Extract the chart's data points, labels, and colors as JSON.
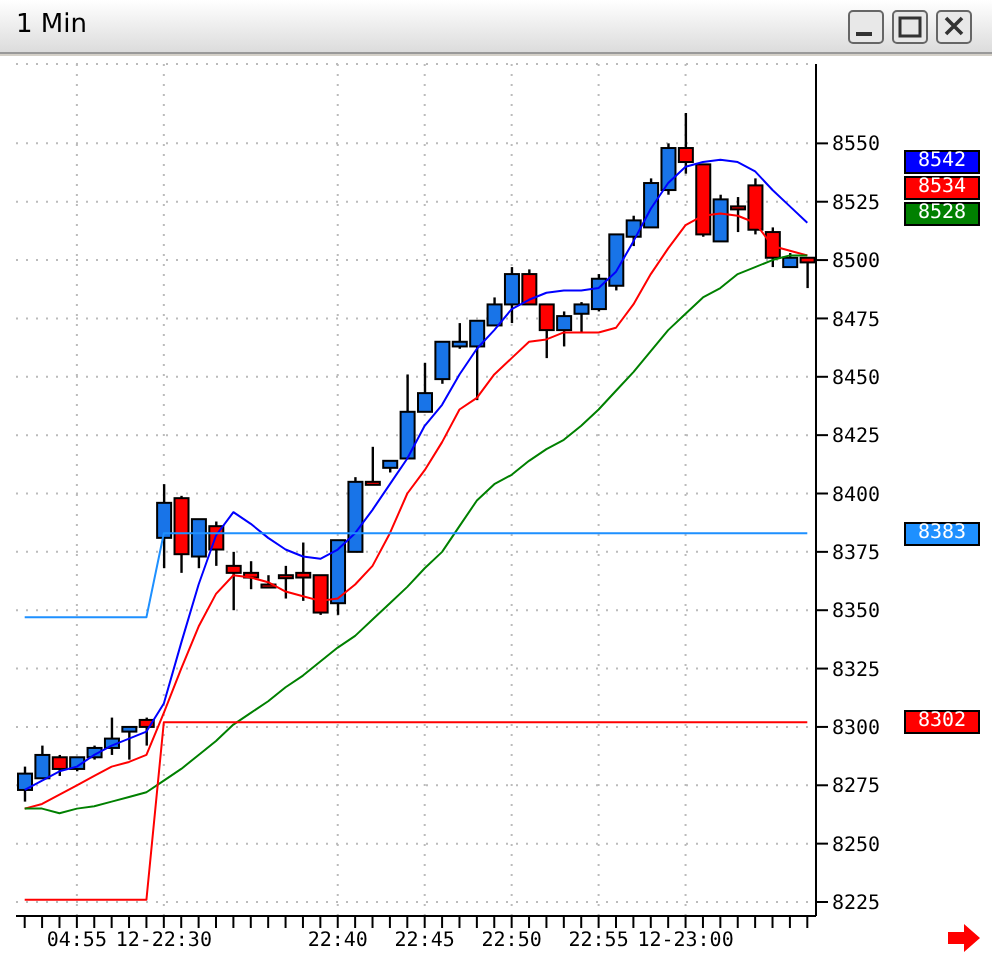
{
  "chart_data": {
    "type": "candlestick",
    "title": "1 Min",
    "categories": [
      null,
      null,
      null,
      "04:55",
      null,
      null,
      null,
      null,
      "12-22:30",
      null,
      null,
      null,
      null,
      null,
      null,
      null,
      null,
      null,
      "22:40",
      null,
      null,
      null,
      null,
      "22:45",
      null,
      null,
      null,
      null,
      "22:50",
      null,
      null,
      null,
      null,
      "22:55",
      null,
      null,
      null,
      null,
      "12-23:00",
      null,
      null,
      null,
      null,
      null,
      null,
      null
    ],
    "ohlc": [
      [
        8273,
        8283,
        8268,
        8280
      ],
      [
        8278,
        8292,
        8278,
        8288
      ],
      [
        8287,
        8288,
        8279,
        8282
      ],
      [
        8282,
        8287,
        8281,
        8287
      ],
      [
        8287,
        8292,
        8286,
        8291
      ],
      [
        8291,
        8304,
        8288,
        8295
      ],
      [
        8298,
        8300,
        8286,
        8300
      ],
      [
        8303,
        8304,
        8292,
        8300
      ],
      [
        8381,
        8404,
        8368,
        8396
      ],
      [
        8398,
        8399,
        8366,
        8374
      ],
      [
        8373,
        8389,
        8368,
        8389
      ],
      [
        8386,
        8388,
        8369,
        8376
      ],
      [
        8369,
        8375,
        8350,
        8366
      ],
      [
        8366,
        8371,
        8359,
        8364
      ],
      [
        8361,
        8365,
        8360,
        8360
      ],
      [
        8365,
        8369,
        8355,
        8364
      ],
      [
        8366,
        8379,
        8354,
        8364
      ],
      [
        8365,
        8365,
        8348,
        8349
      ],
      [
        8353,
        8380,
        8348,
        8380
      ],
      [
        8375,
        8407,
        8375,
        8405
      ],
      [
        8405,
        8420,
        8404,
        8404
      ],
      [
        8411,
        8414,
        8409,
        8414
      ],
      [
        8415,
        8451,
        8415,
        8435
      ],
      [
        8435,
        8456,
        8435,
        8443
      ],
      [
        8449,
        8465,
        8447,
        8465
      ],
      [
        8463,
        8473,
        8462,
        8465
      ],
      [
        8463,
        8474,
        8440,
        8474
      ],
      [
        8472,
        8484,
        8472,
        8481
      ],
      [
        8481,
        8497,
        8473,
        8494
      ],
      [
        8494,
        8496,
        8481,
        8481
      ],
      [
        8481,
        8481,
        8458,
        8470
      ],
      [
        8470,
        8478,
        8463,
        8476
      ],
      [
        8477,
        8482,
        8469,
        8481
      ],
      [
        8479,
        8494,
        8478,
        8492
      ],
      [
        8489,
        8511,
        8487,
        8511
      ],
      [
        8510,
        8519,
        8506,
        8517
      ],
      [
        8514,
        8535,
        8514,
        8533
      ],
      [
        8530,
        8550,
        8528,
        8548
      ],
      [
        8548,
        8563,
        8537,
        8542
      ],
      [
        8541,
        8541,
        8510,
        8511
      ],
      [
        8508,
        8528,
        8508,
        8526
      ],
      [
        8523,
        8527,
        8512,
        8522
      ],
      [
        8532,
        8535,
        8511,
        8513
      ],
      [
        8512,
        8514,
        8497,
        8501
      ],
      [
        8497,
        8503,
        8497,
        8501
      ],
      [
        8501,
        8501,
        8488,
        8499
      ]
    ],
    "colors": [
      "#1874e8",
      "#1874e8",
      "#ff0000",
      "#1874e8",
      "#1874e8",
      "#1874e8",
      "#1874e8",
      "#ff0000",
      "#1874e8",
      "#ff0000",
      "#1874e8",
      "#ff0000",
      "#ff0000",
      "#ff0000",
      "#ff0000",
      "#ff0000",
      "#ff0000",
      "#ff0000",
      "#1874e8",
      "#1874e8",
      "#ff0000",
      "#1874e8",
      "#1874e8",
      "#1874e8",
      "#1874e8",
      "#1874e8",
      "#1874e8",
      "#1874e8",
      "#1874e8",
      "#ff0000",
      "#ff0000",
      "#1874e8",
      "#1874e8",
      "#1874e8",
      "#1874e8",
      "#1874e8",
      "#1874e8",
      "#1874e8",
      "#ff0000",
      "#ff0000",
      "#1874e8",
      "#ff0000",
      "#ff0000",
      "#ff0000",
      "#1874e8",
      "#ff0000"
    ],
    "series": [
      {
        "type": "line",
        "color": "#0000ff",
        "values": [
          8273,
          8277,
          8281,
          8283,
          8288,
          8292,
          8295,
          8298,
          8310,
          8336,
          8361,
          8382,
          8392,
          8387,
          8381,
          8376,
          8373,
          8372,
          8376,
          8383,
          8393,
          8404,
          8415,
          8429,
          8438,
          8451,
          8462,
          8470,
          8479,
          8483,
          8486,
          8487,
          8487,
          8488,
          8495,
          8508,
          8522,
          8533,
          8540,
          8542,
          8543,
          8542,
          8538,
          8530,
          8523,
          8516
        ]
      },
      {
        "type": "line",
        "color": "#ff0000",
        "values": [
          8265,
          8267,
          8271,
          8275,
          8279,
          8283,
          8285,
          8288,
          8306,
          8325,
          8343,
          8357,
          8365,
          8364,
          8362,
          8358,
          8356,
          8354,
          8355,
          8361,
          8369,
          8383,
          8400,
          8410,
          8422,
          8436,
          8441,
          8451,
          8458,
          8465,
          8466,
          8469,
          8469,
          8469,
          8471,
          8481,
          8494,
          8505,
          8515,
          8519,
          8520,
          8519,
          8516,
          8506,
          8504,
          8502
        ]
      },
      {
        "type": "line",
        "color": "#008000",
        "values": [
          8265,
          8265,
          8263,
          8265,
          8266,
          8268,
          8270,
          8272,
          8277,
          8282,
          8288,
          8294,
          8301,
          8306,
          8311,
          8317,
          8322,
          8328,
          8334,
          8339,
          8346,
          8353,
          8360,
          8368,
          8375,
          8386,
          8397,
          8404,
          8408,
          8414,
          8419,
          8423,
          8429,
          8436,
          8444,
          8452,
          8461,
          8470,
          8477,
          8484,
          8488,
          8494,
          8497,
          8500,
          8502,
          8502
        ]
      },
      {
        "type": "line",
        "color": "#1e90ff",
        "values": [
          8347,
          8347,
          8347,
          8347,
          8347,
          8347,
          8347,
          8347,
          8383,
          8383,
          8383,
          8383,
          8383,
          8383,
          8383,
          8383,
          8383,
          8383,
          8383,
          8383,
          8383,
          8383,
          8383,
          8383,
          8383,
          8383,
          8383,
          8383,
          8383,
          8383,
          8383,
          8383,
          8383,
          8383,
          8383,
          8383,
          8383,
          8383,
          8383,
          8383,
          8383,
          8383,
          8383,
          8383,
          8383,
          8383
        ]
      },
      {
        "type": "line",
        "color": "#ff0000",
        "values": [
          8226,
          8226,
          8226,
          8226,
          8226,
          8226,
          8226,
          8226,
          8302,
          8302,
          8302,
          8302,
          8302,
          8302,
          8302,
          8302,
          8302,
          8302,
          8302,
          8302,
          8302,
          8302,
          8302,
          8302,
          8302,
          8302,
          8302,
          8302,
          8302,
          8302,
          8302,
          8302,
          8302,
          8302,
          8302,
          8302,
          8302,
          8302,
          8302,
          8302,
          8302,
          8302,
          8302,
          8302,
          8302,
          8302
        ]
      }
    ],
    "ylim": [
      8219,
      8584
    ],
    "yticks": [
      8225,
      8250,
      8275,
      8300,
      8325,
      8350,
      8375,
      8400,
      8425,
      8450,
      8475,
      8500,
      8525,
      8550
    ],
    "grid": true,
    "annotations": [
      "8542",
      "8534",
      "8528",
      "8383",
      "8302"
    ]
  }
}
